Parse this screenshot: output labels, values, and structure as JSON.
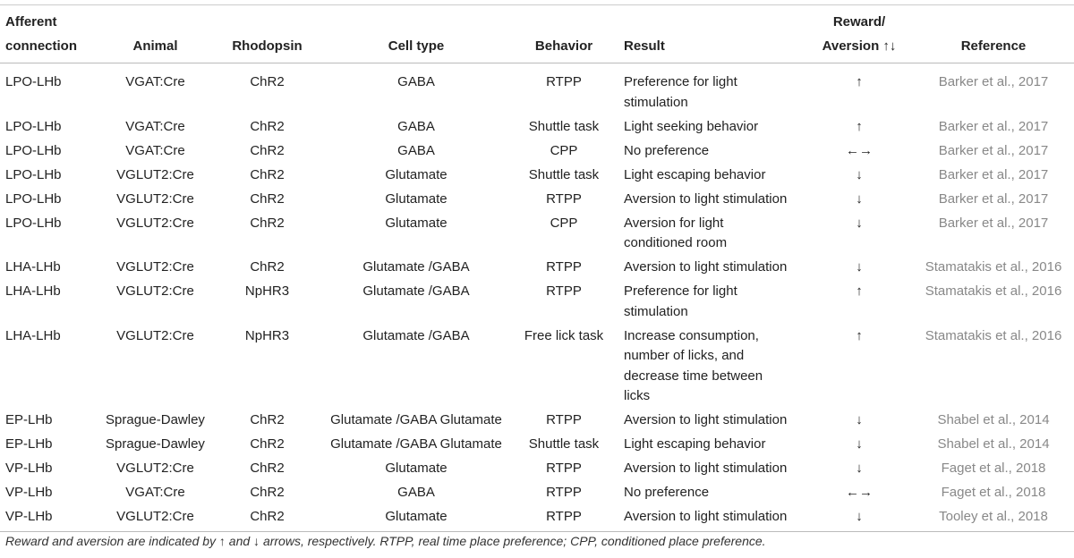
{
  "table": {
    "columns": [
      [
        "Afferent",
        "connection"
      ],
      "Animal",
      "Rhodopsin",
      "Cell type",
      "Behavior",
      "Result",
      [
        "Reward/",
        "Aversion ↑↓"
      ],
      "Reference"
    ],
    "rows": [
      [
        "LPO-LHb",
        "VGAT:Cre",
        "ChR2",
        "GABA",
        "RTPP",
        [
          "Preference for light",
          "stimulation"
        ],
        "↑",
        "Barker et al., 2017"
      ],
      [
        "LPO-LHb",
        "VGAT:Cre",
        "ChR2",
        "GABA",
        "Shuttle task",
        "Light seeking behavior",
        "↑",
        "Barker et al., 2017"
      ],
      [
        "LPO-LHb",
        "VGAT:Cre",
        "ChR2",
        "GABA",
        "CPP",
        "No preference",
        "←→",
        "Barker et al., 2017"
      ],
      [
        "LPO-LHb",
        "VGLUT2:Cre",
        "ChR2",
        "Glutamate",
        "Shuttle task",
        "Light escaping behavior",
        "↓",
        "Barker et al., 2017"
      ],
      [
        "LPO-LHb",
        "VGLUT2:Cre",
        "ChR2",
        "Glutamate",
        "RTPP",
        "Aversion to light stimulation",
        "↓",
        "Barker et al., 2017"
      ],
      [
        "LPO-LHb",
        "VGLUT2:Cre",
        "ChR2",
        "Glutamate",
        "CPP",
        [
          "Aversion for light",
          "conditioned room"
        ],
        "↓",
        "Barker et al., 2017"
      ],
      [
        "LHA-LHb",
        "VGLUT2:Cre",
        "ChR2",
        "Glutamate /GABA",
        "RTPP",
        "Aversion to light stimulation",
        "↓",
        "Stamatakis et al., 2016"
      ],
      [
        "LHA-LHb",
        "VGLUT2:Cre",
        "NpHR3",
        "Glutamate /GABA",
        "RTPP",
        [
          "Preference for light",
          "stimulation"
        ],
        "↑",
        "Stamatakis et al., 2016"
      ],
      [
        "LHA-LHb",
        "VGLUT2:Cre",
        "NpHR3",
        "Glutamate /GABA",
        "Free lick task",
        [
          "Increase consumption,",
          "number of licks, and",
          "decrease time between",
          "licks"
        ],
        "↑",
        "Stamatakis et al., 2016"
      ],
      [
        "EP-LHb",
        "Sprague-Dawley",
        "ChR2",
        "Glutamate /GABA Glutamate",
        "RTPP",
        "Aversion to light stimulation",
        "↓",
        "Shabel et al., 2014"
      ],
      [
        "EP-LHb",
        "Sprague-Dawley",
        "ChR2",
        "Glutamate /GABA Glutamate",
        "Shuttle task",
        "Light escaping behavior",
        "↓",
        "Shabel et al., 2014"
      ],
      [
        "VP-LHb",
        "VGLUT2:Cre",
        "ChR2",
        "Glutamate",
        "RTPP",
        "Aversion to light stimulation",
        "↓",
        "Faget et al., 2018"
      ],
      [
        "VP-LHb",
        "VGAT:Cre",
        "ChR2",
        "GABA",
        "RTPP",
        "No preference",
        "←→",
        "Faget et al., 2018"
      ],
      [
        "VP-LHb",
        "VGLUT2:Cre",
        "ChR2",
        "Glutamate",
        "RTPP",
        "Aversion to light stimulation",
        "↓",
        "Tooley et al., 2018"
      ]
    ],
    "footnote": "Reward and aversion are indicated by ↑ and ↓ arrows, respectively. RTPP, real time place preference; CPP, conditioned place preference."
  }
}
